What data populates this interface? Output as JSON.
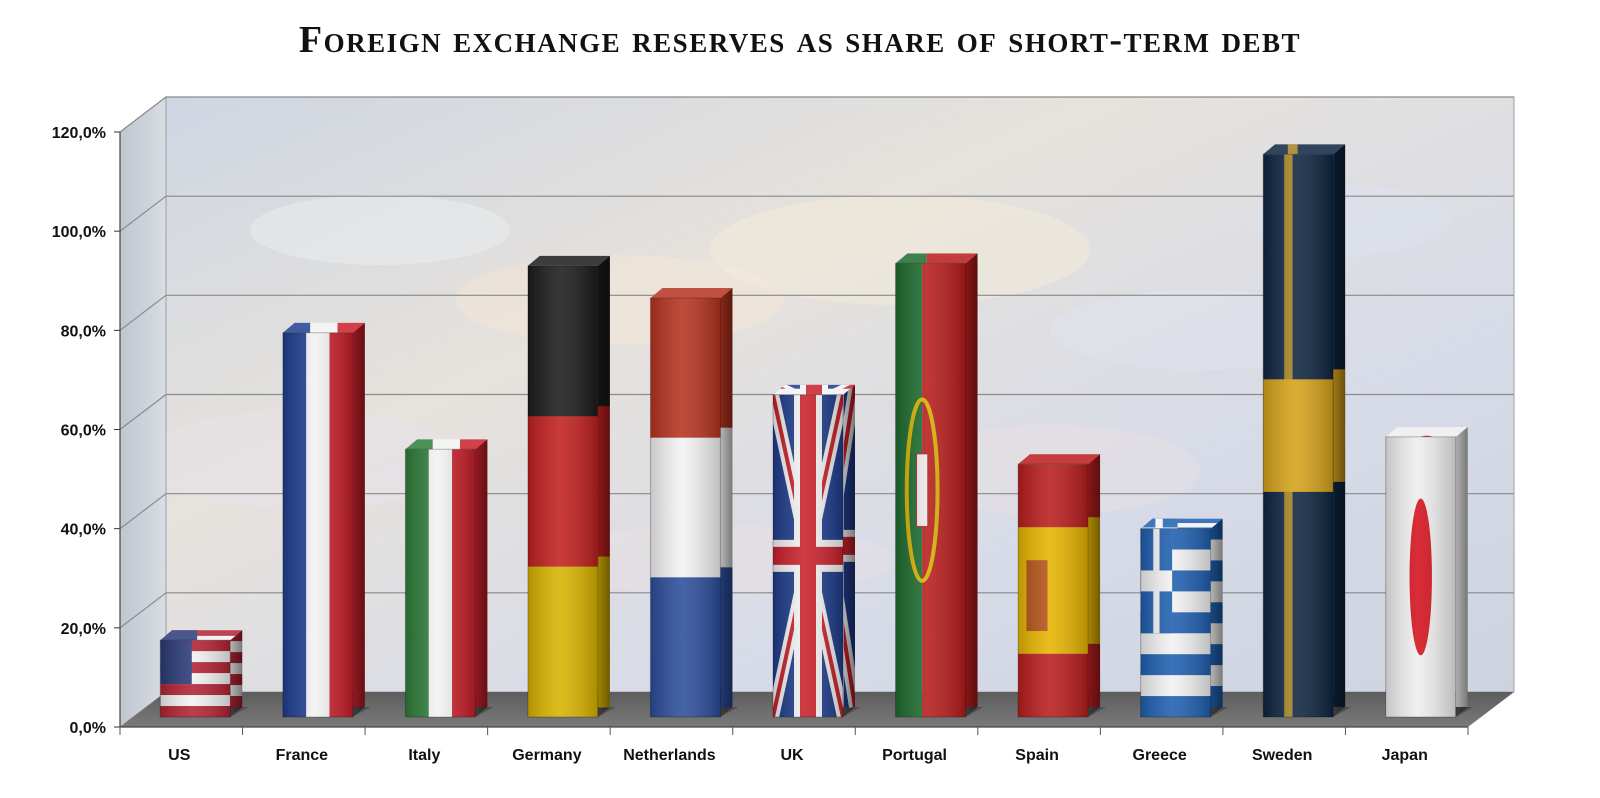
{
  "chart_data": {
    "type": "bar",
    "title": "Foreign exchange reserves as share of short-term debt",
    "xlabel": "",
    "ylabel": "",
    "categories": [
      "US",
      "France",
      "Italy",
      "Germany",
      "Netherlands",
      "UK",
      "Portugal",
      "Spain",
      "Greece",
      "Sweden",
      "Japan"
    ],
    "values": [
      15.5,
      77.5,
      54.0,
      91.0,
      84.5,
      65.0,
      91.5,
      51.0,
      38.0,
      113.5,
      56.5
    ],
    "ylim": [
      0,
      120
    ],
    "yticks": [
      "0,0%",
      "20,0%",
      "40,0%",
      "60,0%",
      "80,0%",
      "100,0%",
      "120,0%"
    ],
    "grid": true,
    "legend": "none",
    "bar_style": "3d-flags",
    "colors": {
      "wall": "#d9dde6",
      "floor": "#6e6e6e",
      "grid": "#8a8a8a",
      "text": "#111111"
    }
  }
}
